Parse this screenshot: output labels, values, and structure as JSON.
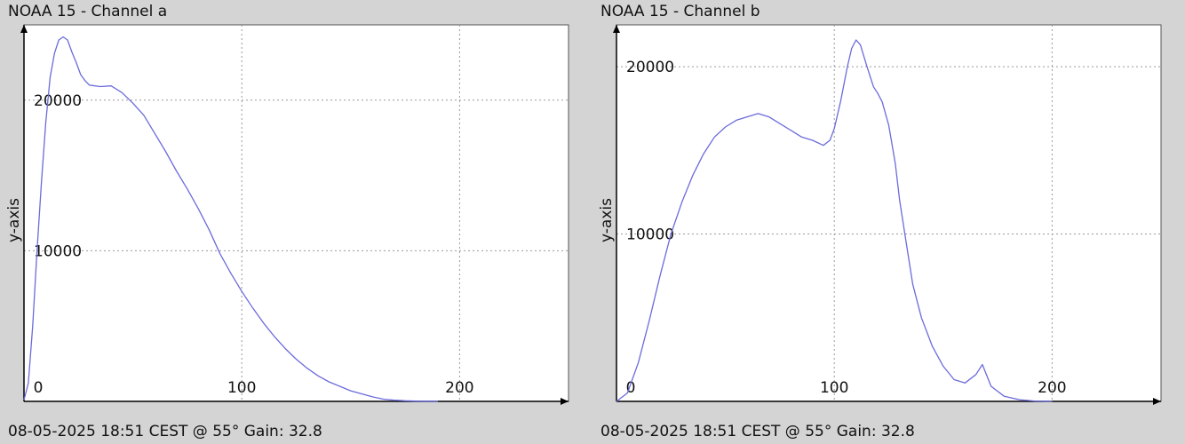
{
  "colors": {
    "background": "#d4d4d4",
    "plot_bg": "#ffffff",
    "line": "#6b6bdc",
    "grid": "#9a9a9a",
    "axis": "#000000"
  },
  "chart_data": [
    {
      "type": "line",
      "title": "NOAA 15 - Channel a",
      "caption": "08-05-2025 18:51 CEST @ 55° Gain: 32.8",
      "ylabel": "y-axis",
      "xlabel": "",
      "xlim": [
        0,
        250
      ],
      "ylim": [
        0,
        25000
      ],
      "x_ticks": [
        {
          "value": 0,
          "label": "0"
        },
        {
          "value": 100,
          "label": "100"
        },
        {
          "value": 200,
          "label": "200"
        }
      ],
      "y_ticks": [
        {
          "value": 10000,
          "label": "10000"
        },
        {
          "value": 20000,
          "label": "20000"
        }
      ],
      "grid": true,
      "series": [
        {
          "x": [
            0,
            2,
            4,
            6,
            8,
            10,
            12,
            14,
            16,
            18,
            20,
            22,
            24,
            26,
            28,
            30,
            35,
            40,
            45,
            50,
            55,
            60,
            65,
            70,
            75,
            80,
            85,
            90,
            95,
            100,
            105,
            110,
            115,
            120,
            125,
            130,
            135,
            140,
            145,
            150,
            155,
            160,
            165,
            170,
            175,
            180,
            185,
            190
          ],
          "y": [
            100,
            1200,
            5000,
            10000,
            14500,
            18500,
            21500,
            23100,
            24000,
            24200,
            24000,
            23200,
            22500,
            21700,
            21300,
            21000,
            20900,
            20950,
            20500,
            19800,
            19000,
            17800,
            16600,
            15300,
            14100,
            12800,
            11400,
            9800,
            8500,
            7300,
            6200,
            5200,
            4300,
            3500,
            2800,
            2200,
            1700,
            1300,
            1000,
            700,
            500,
            300,
            150,
            80,
            40,
            20,
            10,
            0
          ]
        }
      ]
    },
    {
      "type": "line",
      "title": "NOAA 15 - Channel b",
      "caption": "08-05-2025 18:51 CEST @ 55° Gain: 32.8",
      "ylabel": "y-axis",
      "xlabel": "",
      "xlim": [
        0,
        250
      ],
      "ylim": [
        0,
        22500
      ],
      "x_ticks": [
        {
          "value": 0,
          "label": "0"
        },
        {
          "value": 100,
          "label": "100"
        },
        {
          "value": 200,
          "label": "200"
        }
      ],
      "y_ticks": [
        {
          "value": 10000,
          "label": "10000"
        },
        {
          "value": 20000,
          "label": "20000"
        }
      ],
      "grid": true,
      "series": [
        {
          "x": [
            0,
            5,
            10,
            15,
            20,
            25,
            30,
            35,
            40,
            45,
            50,
            55,
            60,
            65,
            70,
            75,
            80,
            85,
            90,
            95,
            98,
            100,
            103,
            106,
            108,
            110,
            112,
            115,
            118,
            120,
            122,
            125,
            128,
            130,
            133,
            136,
            140,
            145,
            150,
            155,
            160,
            165,
            168,
            172,
            178,
            185,
            192,
            200
          ],
          "y": [
            0,
            500,
            2300,
            4800,
            7500,
            10000,
            11900,
            13500,
            14800,
            15800,
            16400,
            16800,
            17000,
            17200,
            17000,
            16600,
            16200,
            15800,
            15600,
            15300,
            15600,
            16300,
            18000,
            20000,
            21100,
            21600,
            21300,
            20000,
            18800,
            18400,
            17900,
            16500,
            14200,
            12000,
            9500,
            7000,
            5000,
            3300,
            2100,
            1300,
            1100,
            1600,
            2200,
            900,
            300,
            100,
            20,
            0
          ]
        }
      ]
    }
  ]
}
